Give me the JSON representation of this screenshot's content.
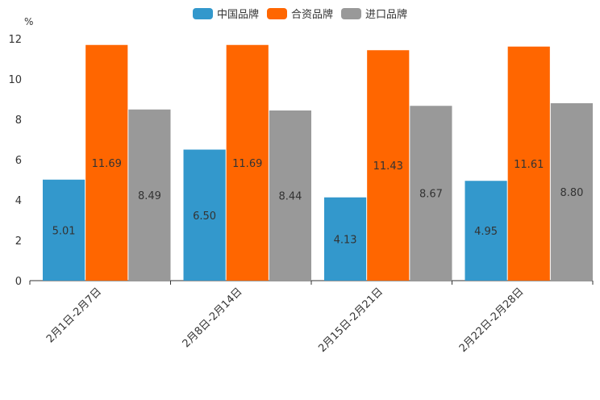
{
  "chart_data": {
    "type": "bar",
    "unit": "%",
    "categories": [
      "2月1日-2月7日",
      "2月8日-2月14日",
      "2月15日-2月21日",
      "2月22日-2月28日"
    ],
    "series": [
      {
        "name": "中国品牌",
        "color": "#3398cc",
        "values": [
          5.01,
          6.5,
          4.13,
          4.95
        ]
      },
      {
        "name": "合资品牌",
        "color": "#ff6600",
        "values": [
          11.69,
          11.69,
          11.43,
          11.61
        ]
      },
      {
        "name": "进口品牌",
        "color": "#999999",
        "values": [
          8.49,
          8.44,
          8.67,
          8.8
        ]
      }
    ],
    "ylim": [
      0,
      12
    ],
    "yticks": [
      "0",
      "2",
      "4",
      "6",
      "8",
      "10",
      "12"
    ],
    "legend_position": "top-center"
  }
}
